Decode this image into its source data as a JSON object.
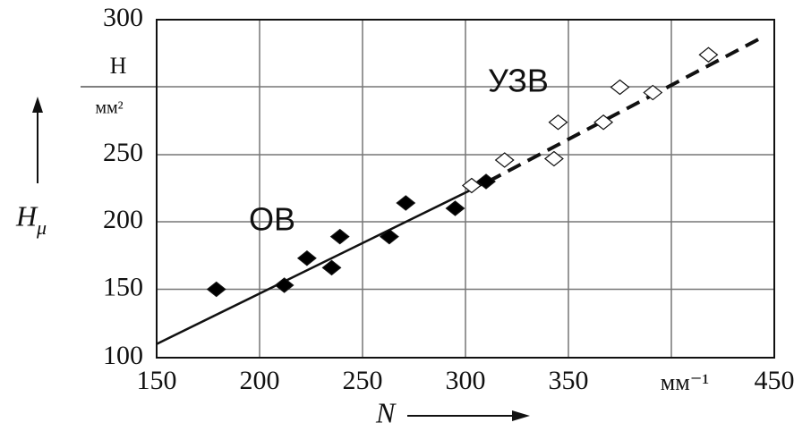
{
  "chart_data": {
    "type": "scatter",
    "y_label": "H",
    "y_label_sub": "μ",
    "y_unit_top": "Н",
    "y_unit_bottom": "мм²",
    "x_label": "N",
    "x_unit": "мм⁻¹",
    "xlim": [
      150,
      450
    ],
    "xticks": [
      150,
      200,
      250,
      300,
      350,
      450
    ],
    "ylim": [
      100,
      300
    ],
    "yticks": [
      100,
      150,
      200,
      250,
      300
    ],
    "grid": true,
    "series": [
      {
        "name": "ОВ",
        "color": "#000000",
        "x": [
          179,
          212,
          223,
          235,
          239,
          263,
          271,
          295,
          310
        ],
        "values": [
          150,
          153,
          173,
          166,
          189,
          189,
          214,
          210,
          230
        ]
      },
      {
        "name": "УЗВ",
        "color": "#ffffff",
        "x": [
          303,
          319,
          343,
          345,
          367,
          375,
          391,
          418
        ],
        "values": [
          227,
          246,
          247,
          262,
          262,
          275,
          273,
          287
        ]
      }
    ],
    "fits": [
      {
        "x": [
          150,
          311
        ],
        "values": [
          110,
          230
        ],
        "dashed": false
      },
      {
        "x": [
          311,
          443
        ],
        "values": [
          230,
          293
        ],
        "dashed": true
      }
    ]
  }
}
